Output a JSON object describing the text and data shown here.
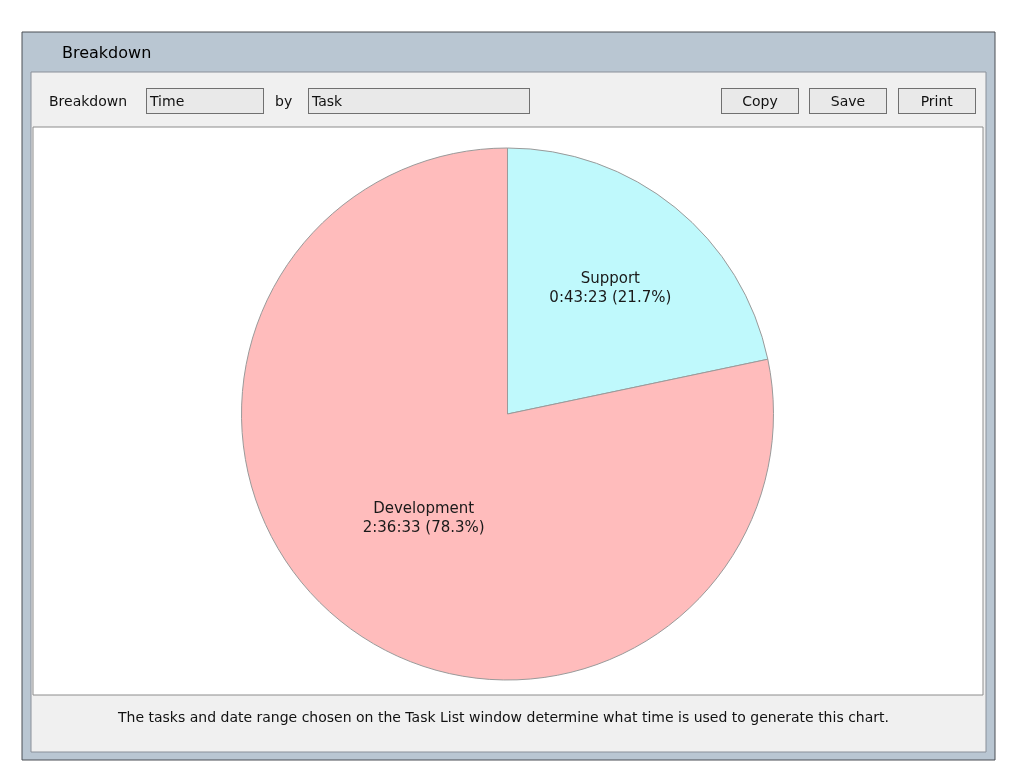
{
  "chart_data": {
    "type": "pie",
    "title": "Breakdown",
    "categories": [
      "Support",
      "Development"
    ],
    "values": [
      21.7,
      78.3
    ],
    "value_labels": [
      "0:43:23 (21.7%)",
      "2:36:33 (78.3%)"
    ],
    "colors": [
      "#bff9fc",
      "#ffbcbc"
    ],
    "annotations": [
      "Breakdown",
      "Time",
      "by",
      "Task",
      "Copy",
      "Save",
      "Print",
      "The tasks and date range chosen on the Task List window determine what time is used to generate this chart."
    ]
  }
}
